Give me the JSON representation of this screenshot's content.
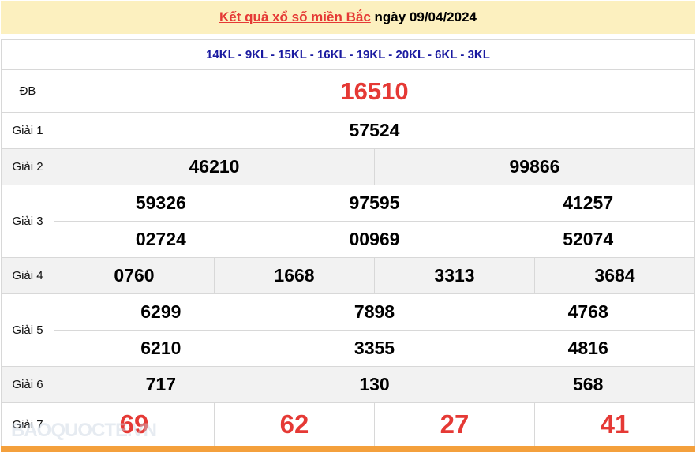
{
  "header": {
    "title_link": "Kết quả xổ số miền Bắc",
    "date_text": "ngày 09/04/2024"
  },
  "codes": "14KL - 9KL - 15KL - 16KL - 19KL - 20KL - 6KL - 3KL",
  "prizes": [
    {
      "label": "ĐB",
      "rows": [
        [
          "16510"
        ]
      ]
    },
    {
      "label": "Giải 1",
      "rows": [
        [
          "57524"
        ]
      ]
    },
    {
      "label": "Giải 2",
      "rows": [
        [
          "46210",
          "99866"
        ]
      ]
    },
    {
      "label": "Giải 3",
      "rows": [
        [
          "59326",
          "97595",
          "41257"
        ],
        [
          "02724",
          "00969",
          "52074"
        ]
      ]
    },
    {
      "label": "Giải 4",
      "rows": [
        [
          "0760",
          "1668",
          "3313",
          "3684"
        ]
      ]
    },
    {
      "label": "Giải 5",
      "rows": [
        [
          "6299",
          "7898",
          "4768"
        ],
        [
          "6210",
          "3355",
          "4816"
        ]
      ]
    },
    {
      "label": "Giải 6",
      "rows": [
        [
          "717",
          "130",
          "568"
        ]
      ]
    },
    {
      "label": "Giải 7",
      "rows": [
        [
          "69",
          "62",
          "27",
          "41"
        ]
      ]
    }
  ],
  "watermark": "BAOQUOCTE.VN",
  "colors": {
    "highlight": "#e53935",
    "codes": "#1a1aa0",
    "header_bg": "#fcf0bf",
    "footer_bar": "#f4a03c"
  }
}
